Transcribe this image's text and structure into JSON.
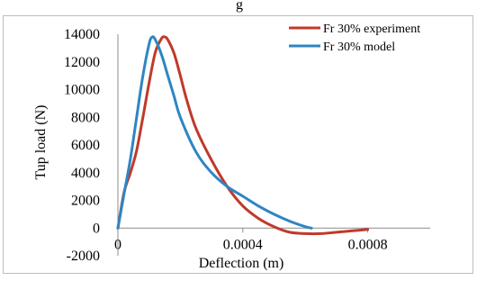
{
  "caption_fragment": "g",
  "chart_data": {
    "type": "line",
    "title": "",
    "xlabel": "Deflection (m)",
    "ylabel": "Tup load (N)",
    "xlim": [
      0,
      0.001
    ],
    "ylim": [
      -2000,
      14000
    ],
    "x_ticks": [
      0,
      0.0004,
      0.0008
    ],
    "x_tick_labels": [
      "0",
      "0.0004",
      "0.0008"
    ],
    "y_ticks": [
      -2000,
      0,
      2000,
      4000,
      6000,
      8000,
      10000,
      12000,
      14000
    ],
    "y_tick_labels": [
      "-2000",
      "0",
      "2000",
      "4000",
      "6000",
      "8000",
      "10000",
      "12000",
      "14000"
    ],
    "grid": false,
    "legend_position": "top-right",
    "series": [
      {
        "name": "Fr 30% experiment",
        "color": "#c0392b",
        "x": [
          0,
          2e-05,
          4e-05,
          6e-05,
          8e-05,
          0.0001,
          0.00012,
          0.00014,
          0.00015,
          0.00016,
          0.00018,
          0.0002,
          0.00022,
          0.00025,
          0.0003,
          0.00035,
          0.0004,
          0.00045,
          0.0005,
          0.00055,
          0.0006,
          0.00065,
          0.0007,
          0.00075,
          0.0008
        ],
        "y": [
          0,
          2600,
          4000,
          5600,
          8000,
          10500,
          12700,
          13700,
          13800,
          13600,
          12600,
          11000,
          9300,
          7200,
          4900,
          3000,
          1600,
          700,
          100,
          -300,
          -400,
          -400,
          -300,
          -200,
          -100
        ]
      },
      {
        "name": "Fr 30% model",
        "color": "#2e86c1",
        "x": [
          0,
          2e-05,
          4e-05,
          6e-05,
          8e-05,
          0.0001,
          0.00011,
          0.00012,
          0.00014,
          0.00016,
          0.00018,
          0.0002,
          0.00025,
          0.0003,
          0.00035,
          0.0004,
          0.00045,
          0.0005,
          0.00055,
          0.0006,
          0.00062
        ],
        "y": [
          0,
          2500,
          5000,
          8000,
          11000,
          13300,
          13800,
          13600,
          12500,
          11000,
          9500,
          8000,
          5500,
          4000,
          3000,
          2300,
          1600,
          1000,
          500,
          100,
          0
        ]
      }
    ]
  }
}
